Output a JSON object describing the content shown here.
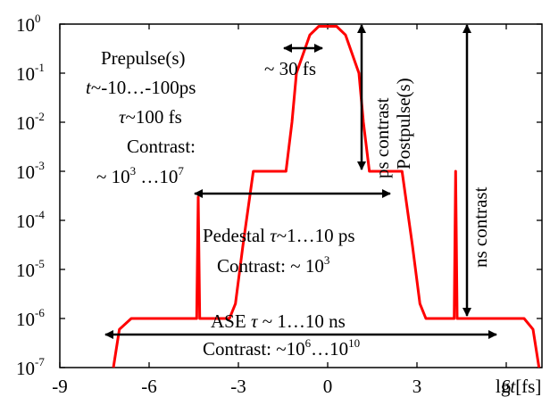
{
  "chart_data": {
    "type": "line",
    "title": "",
    "xlabel": "lg t [fs]",
    "ylabel": "",
    "y_scale": "log",
    "xlim": [
      -9,
      7.2
    ],
    "ylim": [
      1e-07,
      1
    ],
    "grid": false,
    "legend": "none",
    "x_ticks": [
      -9,
      -6,
      -3,
      0,
      3,
      6
    ],
    "y_tick_exponents": [
      0,
      -1,
      -2,
      -3,
      -4,
      -5,
      -6,
      -7
    ],
    "series": [
      {
        "color": "#ff0000",
        "x": [
          -7.2,
          -7.0,
          -6.6,
          -6.1,
          -4.5,
          -4.5,
          -4.4,
          -4.35,
          -4.3,
          -4.2,
          -3.3,
          -3.1,
          -2.85,
          -2.5,
          -1.4,
          -1.2,
          -1.05,
          -0.6,
          -0.3,
          0.0,
          0.3,
          0.6,
          1.05,
          1.2,
          1.4,
          2.5,
          2.85,
          3.1,
          3.3,
          4.15,
          4.25,
          4.3,
          4.35,
          4.4,
          4.5,
          6.2,
          6.6,
          6.9,
          7.1
        ],
        "y": [
          1e-07,
          6e-07,
          1e-06,
          1e-06,
          1e-06,
          1e-06,
          1e-06,
          0.0003,
          1e-06,
          1e-06,
          1e-06,
          2e-06,
          3e-05,
          0.001,
          0.001,
          0.01,
          0.1,
          0.6,
          0.9,
          0.9,
          0.9,
          0.6,
          0.1,
          0.01,
          0.001,
          0.001,
          3e-05,
          2e-06,
          1e-06,
          1e-06,
          1e-06,
          0.001,
          1e-06,
          1e-06,
          1e-06,
          1e-06,
          1e-06,
          6e-07,
          1e-07
        ]
      }
    ]
  },
  "labels": {
    "tick_base": "10",
    "xlabel_lg": "lg",
    "xlabel_t": "t",
    "xlabel_unit": "[fs]",
    "prepulse": {
      "title": "Prepulse(s)",
      "t_var": "t",
      "t_val": "~-10…-100ps",
      "tau_var": "τ",
      "tau_val": "~100 fs",
      "contrast": "Contrast:",
      "range_pre": "~ 10",
      "range_mid": " …10",
      "exp1": "3",
      "exp2": "7"
    },
    "fwhm": "~ 30 fs",
    "ps_contrast": "ps contrast",
    "ns_contrast": "ns contrast",
    "postpulse": "Postpulse(s)",
    "pedestal": {
      "line1_a": "Pedestal ",
      "tau": "τ",
      "line1_b": "~1…10 ps",
      "line2": "Contrast: ~ 10",
      "line2_exp": "3"
    },
    "ase": {
      "line1_a": "ASE ",
      "tau": "τ",
      "line1_b": " ~ 1…10 ns",
      "line2_a": "Contrast: ~10",
      "exp1": "6",
      "line2_b": "…10",
      "exp2": "10"
    }
  }
}
